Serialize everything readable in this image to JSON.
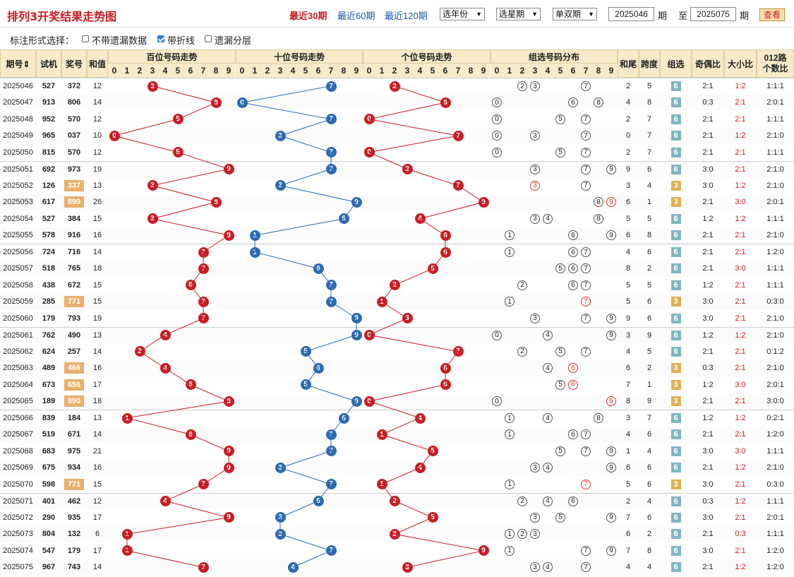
{
  "header": {
    "title": "排列3开奖结果走势图",
    "quick": [
      "最近30期",
      "最近60期",
      "最近120期"
    ],
    "year_select": "选年份",
    "week_select": "选星期",
    "oddeven_select": "单双期",
    "from_issue": "2025046",
    "issue_label": "期",
    "to_label": "至",
    "to_issue": "2025075",
    "query_button": "查看"
  },
  "options": {
    "label": "标注形式选择：",
    "items": [
      {
        "label": "不带遗漏数据",
        "checked": false
      },
      {
        "label": "带折线",
        "checked": true
      },
      {
        "label": "遗漏分层",
        "checked": false
      }
    ]
  },
  "columns": {
    "issue": "期号⇕",
    "trial": "试机",
    "prize": "奖号",
    "sum": "和值",
    "hundreds": "百位号码走势",
    "tens": "十位号码走势",
    "units": "个位号码走势",
    "group": "组选号码分布",
    "tail": "和尾",
    "span": "跨度",
    "grp": "组选",
    "oe": "奇偶比",
    "bs": "大小比",
    "r012_1": "012路",
    "r012_2": "个数比"
  },
  "digits": [
    "0",
    "1",
    "2",
    "3",
    "4",
    "5",
    "6",
    "7",
    "8",
    "9"
  ],
  "rows": [
    {
      "issue": "2025046",
      "trial": "527",
      "prize": "372",
      "sum": "12",
      "tail": "2",
      "span": "5",
      "grp": "6",
      "oe": "2:1",
      "bs": "1:2",
      "r012": "1:1:1"
    },
    {
      "issue": "2025047",
      "trial": "913",
      "prize": "806",
      "sum": "14",
      "tail": "4",
      "span": "8",
      "grp": "6",
      "oe": "0:3",
      "bs": "2:1",
      "r012": "2:0:1"
    },
    {
      "issue": "2025048",
      "trial": "952",
      "prize": "570",
      "sum": "12",
      "tail": "2",
      "span": "7",
      "grp": "6",
      "oe": "2:1",
      "bs": "2:1",
      "r012": "1:1:1"
    },
    {
      "issue": "2025049",
      "trial": "965",
      "prize": "037",
      "sum": "10",
      "tail": "0",
      "span": "7",
      "grp": "6",
      "oe": "2:1",
      "bs": "1:2",
      "r012": "2:1:0"
    },
    {
      "issue": "2025050",
      "trial": "815",
      "prize": "570",
      "sum": "12",
      "tail": "2",
      "span": "7",
      "grp": "6",
      "oe": "2:1",
      "bs": "2:1",
      "r012": "1:1:1"
    },
    {
      "issue": "2025051",
      "trial": "692",
      "prize": "973",
      "sum": "19",
      "tail": "9",
      "span": "6",
      "grp": "6",
      "oe": "3:0",
      "bs": "2:1",
      "r012": "2:1:0"
    },
    {
      "issue": "2025052",
      "trial": "126",
      "prize": "337",
      "sum": "13",
      "tail": "3",
      "span": "4",
      "grp": "3",
      "oe": "3:0",
      "bs": "1:2",
      "r012": "2:1:0",
      "hl": true
    },
    {
      "issue": "2025053",
      "trial": "617",
      "prize": "899",
      "sum": "26",
      "tail": "6",
      "span": "1",
      "grp": "3",
      "oe": "2:1",
      "bs": "3:0",
      "r012": "2:0:1",
      "hl": true
    },
    {
      "issue": "2025054",
      "trial": "527",
      "prize": "384",
      "sum": "15",
      "tail": "5",
      "span": "5",
      "grp": "6",
      "oe": "1:2",
      "bs": "1:2",
      "r012": "1:1:1"
    },
    {
      "issue": "2025055",
      "trial": "578",
      "prize": "916",
      "sum": "16",
      "tail": "6",
      "span": "8",
      "grp": "6",
      "oe": "2:1",
      "bs": "2:1",
      "r012": "2:1:0"
    },
    {
      "issue": "2025056",
      "trial": "724",
      "prize": "716",
      "sum": "14",
      "tail": "4",
      "span": "6",
      "grp": "6",
      "oe": "2:1",
      "bs": "2:1",
      "r012": "1:2:0"
    },
    {
      "issue": "2025057",
      "trial": "518",
      "prize": "765",
      "sum": "18",
      "tail": "8",
      "span": "2",
      "grp": "6",
      "oe": "2:1",
      "bs": "3:0",
      "r012": "1:1:1"
    },
    {
      "issue": "2025058",
      "trial": "438",
      "prize": "672",
      "sum": "15",
      "tail": "5",
      "span": "5",
      "grp": "6",
      "oe": "1:2",
      "bs": "2:1",
      "r012": "1:1:1"
    },
    {
      "issue": "2025059",
      "trial": "285",
      "prize": "771",
      "sum": "15",
      "tail": "5",
      "span": "6",
      "grp": "3",
      "oe": "3:0",
      "bs": "2:1",
      "r012": "0:3:0",
      "hl": true
    },
    {
      "issue": "2025060",
      "trial": "179",
      "prize": "793",
      "sum": "19",
      "tail": "9",
      "span": "6",
      "grp": "6",
      "oe": "3:0",
      "bs": "2:1",
      "r012": "2:1:0"
    },
    {
      "issue": "2025061",
      "trial": "762",
      "prize": "490",
      "sum": "13",
      "tail": "3",
      "span": "9",
      "grp": "6",
      "oe": "1:2",
      "bs": "1:2",
      "r012": "2:1:0"
    },
    {
      "issue": "2025062",
      "trial": "624",
      "prize": "257",
      "sum": "14",
      "tail": "4",
      "span": "5",
      "grp": "6",
      "oe": "2:1",
      "bs": "2:1",
      "r012": "0:1:2"
    },
    {
      "issue": "2025063",
      "trial": "489",
      "prize": "466",
      "sum": "16",
      "tail": "6",
      "span": "2",
      "grp": "3",
      "oe": "0:3",
      "bs": "2:1",
      "r012": "2:1:0",
      "hl": true
    },
    {
      "issue": "2025064",
      "trial": "673",
      "prize": "656",
      "sum": "17",
      "tail": "7",
      "span": "1",
      "grp": "3",
      "oe": "1:2",
      "bs": "3:0",
      "r012": "2:0:1",
      "hl": true
    },
    {
      "issue": "2025065",
      "trial": "189",
      "prize": "990",
      "sum": "18",
      "tail": "8",
      "span": "9",
      "grp": "3",
      "oe": "2:1",
      "bs": "2:1",
      "r012": "3:0:0",
      "hl": true
    },
    {
      "issue": "2025066",
      "trial": "839",
      "prize": "184",
      "sum": "13",
      "tail": "3",
      "span": "7",
      "grp": "6",
      "oe": "1:2",
      "bs": "1:2",
      "r012": "0:2:1"
    },
    {
      "issue": "2025067",
      "trial": "519",
      "prize": "671",
      "sum": "14",
      "tail": "4",
      "span": "6",
      "grp": "6",
      "oe": "2:1",
      "bs": "2:1",
      "r012": "1:2:0"
    },
    {
      "issue": "2025068",
      "trial": "683",
      "prize": "975",
      "sum": "21",
      "tail": "1",
      "span": "4",
      "grp": "6",
      "oe": "3:0",
      "bs": "3:0",
      "r012": "1:1:1"
    },
    {
      "issue": "2025069",
      "trial": "675",
      "prize": "934",
      "sum": "16",
      "tail": "6",
      "span": "6",
      "grp": "6",
      "oe": "2:1",
      "bs": "1:2",
      "r012": "2:1:0"
    },
    {
      "issue": "2025070",
      "trial": "598",
      "prize": "771",
      "sum": "15",
      "tail": "5",
      "span": "6",
      "grp": "3",
      "oe": "3:0",
      "bs": "2:1",
      "r012": "0:3:0",
      "hl": true
    },
    {
      "issue": "2025071",
      "trial": "401",
      "prize": "462",
      "sum": "12",
      "tail": "2",
      "span": "4",
      "grp": "6",
      "oe": "0:3",
      "bs": "1:2",
      "r012": "1:1:1"
    },
    {
      "issue": "2025072",
      "trial": "290",
      "prize": "935",
      "sum": "17",
      "tail": "7",
      "span": "6",
      "grp": "6",
      "oe": "3:0",
      "bs": "2:1",
      "r012": "2:0:1"
    },
    {
      "issue": "2025073",
      "trial": "804",
      "prize": "132",
      "sum": "6",
      "tail": "6",
      "span": "2",
      "grp": "6",
      "oe": "2:1",
      "bs": "0:3",
      "r012": "1:1:1"
    },
    {
      "issue": "2025074",
      "trial": "547",
      "prize": "179",
      "sum": "17",
      "tail": "7",
      "span": "8",
      "grp": "6",
      "oe": "3:0",
      "bs": "2:1",
      "r012": "1:2:0"
    },
    {
      "issue": "2025075",
      "trial": "967",
      "prize": "743",
      "sum": "14",
      "tail": "4",
      "span": "4",
      "grp": "6",
      "oe": "2:1",
      "bs": "1:2",
      "r012": "1:2:0"
    }
  ]
}
